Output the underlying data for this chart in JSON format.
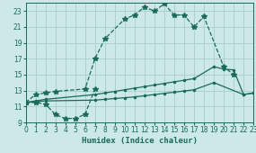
{
  "background_color": "#cce8e8",
  "grid_color": "#aacccc",
  "line_color": "#1a6b5a",
  "xlabel": "Humidex (Indice chaleur)",
  "xlim": [
    0,
    23
  ],
  "ylim": [
    9,
    24
  ],
  "yticks": [
    9,
    11,
    13,
    15,
    17,
    19,
    21,
    23
  ],
  "xticks": [
    0,
    1,
    2,
    3,
    4,
    5,
    6,
    7,
    8,
    9,
    10,
    11,
    12,
    13,
    14,
    15,
    16,
    17,
    18,
    19,
    20,
    21,
    22,
    23
  ],
  "c1_x": [
    0,
    1,
    2,
    3,
    6,
    7,
    8,
    10,
    11,
    12,
    13,
    14,
    15,
    16,
    17,
    18,
    20,
    21
  ],
  "c1_y": [
    11.5,
    12.5,
    12.7,
    12.9,
    13.2,
    17.0,
    19.5,
    22.0,
    22.5,
    23.5,
    23.0,
    23.9,
    22.5,
    22.5,
    21.0,
    22.3,
    16.0,
    15.0
  ],
  "c2_x": [
    0,
    1,
    2,
    3,
    4,
    5,
    6,
    7
  ],
  "c2_y": [
    11.5,
    11.5,
    11.3,
    10.0,
    9.5,
    9.5,
    10.0,
    13.2
  ],
  "c3_x": [
    0,
    1,
    2,
    7,
    8,
    9,
    10,
    11,
    12,
    13,
    14,
    15,
    16,
    17,
    19,
    20,
    21,
    22,
    23
  ],
  "c3_y": [
    11.5,
    11.7,
    11.9,
    12.5,
    12.7,
    12.9,
    13.1,
    13.3,
    13.5,
    13.7,
    13.9,
    14.1,
    14.3,
    14.5,
    16.0,
    15.7,
    15.6,
    12.5,
    12.7
  ],
  "c4_x": [
    0,
    1,
    2,
    7,
    8,
    9,
    10,
    11,
    12,
    13,
    14,
    15,
    16,
    17,
    19,
    22,
    23
  ],
  "c4_y": [
    11.5,
    11.6,
    11.7,
    11.8,
    11.9,
    12.0,
    12.1,
    12.2,
    12.35,
    12.5,
    12.65,
    12.8,
    12.95,
    13.1,
    14.0,
    12.5,
    12.7
  ]
}
